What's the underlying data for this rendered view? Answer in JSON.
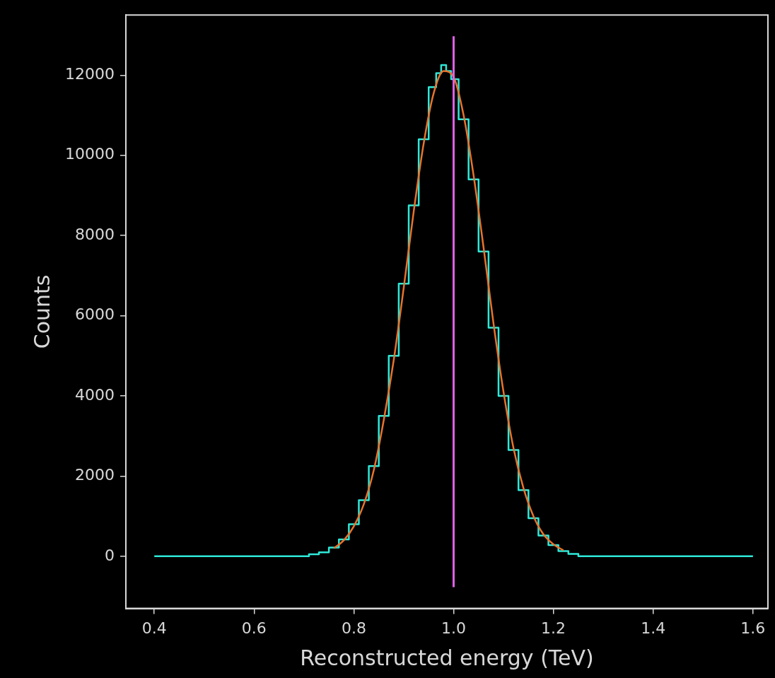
{
  "chart_data": {
    "type": "line",
    "xlabel": "Reconstructed energy (TeV)",
    "ylabel": "Counts",
    "grid": false,
    "xlim": [
      0.343,
      1.63
    ],
    "ylim": [
      -1300,
      13500
    ],
    "xticks": [
      0.4,
      0.6,
      {
        "value": 1,
        "label": "1.0"
      },
      0.8,
      1.2,
      1.4,
      1.6
    ],
    "yticks": [
      0,
      2000,
      4000,
      6000,
      8000,
      10000,
      12000
    ],
    "ref_lines": [
      {
        "axis": "x",
        "value": 1,
        "color": "#e060e8"
      }
    ],
    "series": [
      {
        "color": "#e8732c",
        "x": [
          0.76,
          0.78,
          0.8,
          0.82,
          0.84,
          0.86,
          0.88,
          0.9,
          0.92,
          0.94,
          0.96,
          0.98,
          1.0,
          1.02,
          1.04,
          1.06,
          1.08,
          1.1,
          1.12,
          1.14,
          1.16,
          1.18,
          1.2,
          1.22
        ],
        "values": [
          200,
          400,
          750,
          1300,
          2150,
          3400,
          4900,
          6700,
          8600,
          10300,
          11550,
          12100,
          11950,
          11000,
          9500,
          7700,
          5800,
          4100,
          2700,
          1700,
          1000,
          550,
          300,
          150
        ]
      },
      {
        "type": "step",
        "color": "#2ee8d8",
        "x": [
          0.4,
          0.5,
          0.6,
          0.66,
          0.7,
          0.72,
          0.74,
          0.76,
          0.78,
          0.8,
          0.82,
          0.84,
          0.86,
          0.88,
          0.9,
          0.92,
          0.94,
          0.96,
          0.97,
          0.98,
          0.99,
          1.0,
          1.02,
          1.04,
          1.06,
          1.08,
          1.1,
          1.12,
          1.14,
          1.16,
          1.18,
          1.2,
          1.22,
          1.24,
          1.26,
          1.3,
          1.4,
          1.5,
          1.6
        ],
        "values": [
          0,
          0,
          0,
          0,
          0,
          50,
          100,
          220,
          420,
          800,
          1400,
          2250,
          3500,
          5000,
          6800,
          8750,
          10400,
          11700,
          12050,
          12250,
          12100,
          11900,
          10900,
          9400,
          7600,
          5700,
          4000,
          2650,
          1650,
          950,
          520,
          280,
          130,
          60,
          0,
          0,
          0,
          0,
          0
        ]
      }
    ]
  }
}
